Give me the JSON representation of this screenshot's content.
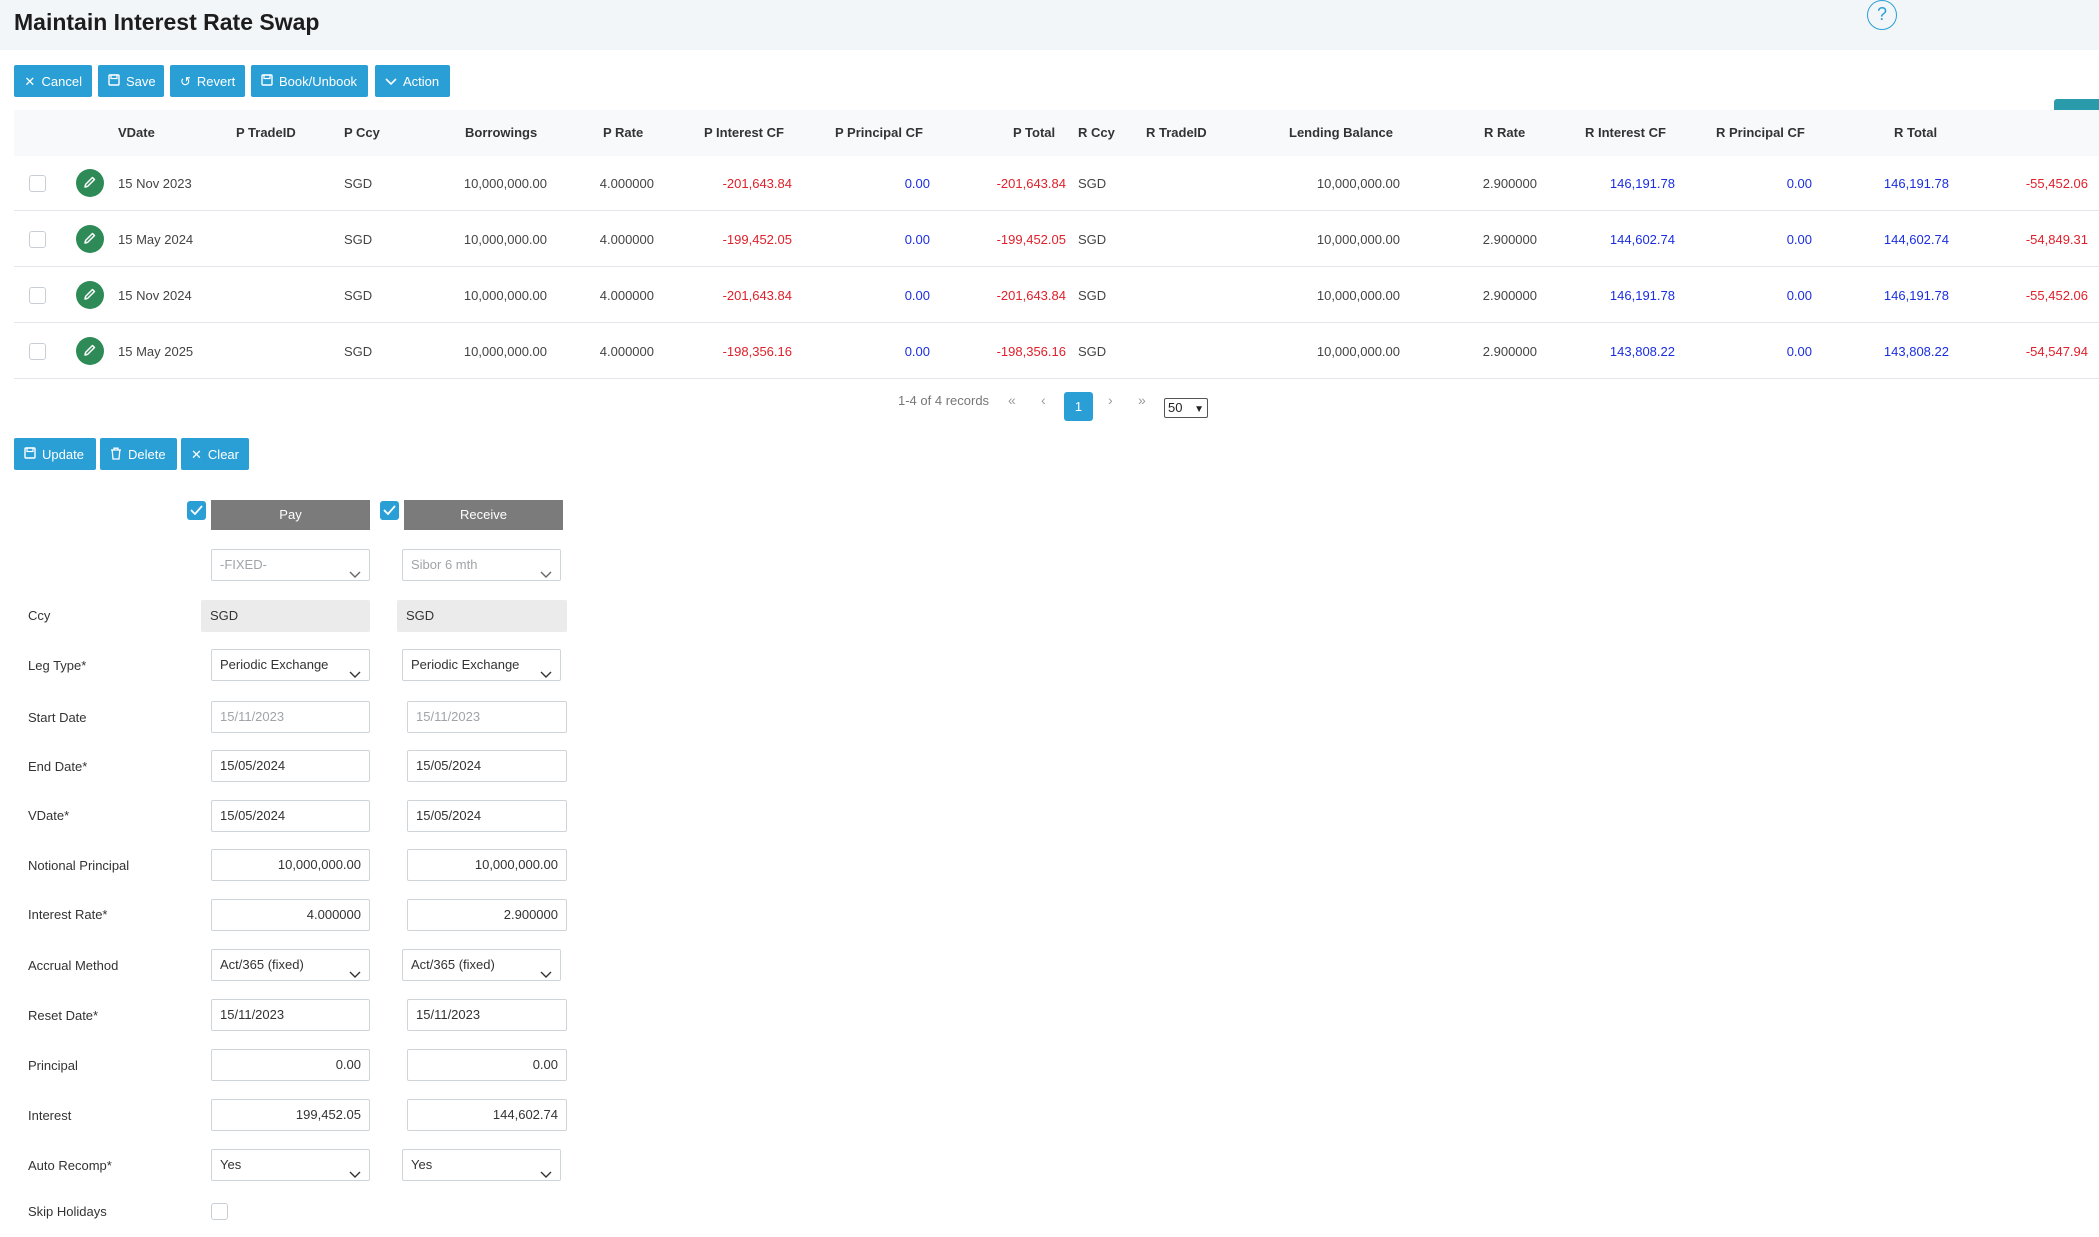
{
  "page": {
    "title": "Maintain Interest Rate Swap",
    "help": "?"
  },
  "toolbar": {
    "cancel": "Cancel",
    "save": "Save",
    "revert": "Revert",
    "book_unbook": "Book/Unbook",
    "action": "Action"
  },
  "grid": {
    "columns": {
      "vdate": "VDate",
      "p_tradeid": "P TradeID",
      "p_ccy": "P Ccy",
      "borrowings": "Borrowings",
      "p_rate": "P Rate",
      "p_interest_cf": "P Interest CF",
      "p_principal_cf": "P Principal CF",
      "p_total": "P Total",
      "r_ccy": "R Ccy",
      "r_tradeid": "R TradeID",
      "lending_balance": "Lending Balance",
      "r_rate": "R Rate",
      "r_interest_cf": "R Interest CF",
      "r_principal_cf": "R Principal CF",
      "r_total": "R Total"
    },
    "rows": [
      {
        "vdate": "15 Nov 2023",
        "p_tradeid": "",
        "p_ccy": "SGD",
        "borrowings": "10,000,000.00",
        "p_rate": "4.000000",
        "p_interest_cf": "-201,643.84",
        "p_principal_cf": "0.00",
        "p_total": "-201,643.84",
        "r_ccy": "SGD",
        "r_tradeid": "",
        "lending_balance": "10,000,000.00",
        "r_rate": "2.900000",
        "r_interest_cf": "146,191.78",
        "r_principal_cf": "0.00",
        "r_total": "146,191.78",
        "net": "-55,452.06"
      },
      {
        "vdate": "15 May 2024",
        "p_tradeid": "",
        "p_ccy": "SGD",
        "borrowings": "10,000,000.00",
        "p_rate": "4.000000",
        "p_interest_cf": "-199,452.05",
        "p_principal_cf": "0.00",
        "p_total": "-199,452.05",
        "r_ccy": "SGD",
        "r_tradeid": "",
        "lending_balance": "10,000,000.00",
        "r_rate": "2.900000",
        "r_interest_cf": "144,602.74",
        "r_principal_cf": "0.00",
        "r_total": "144,602.74",
        "net": "-54,849.31"
      },
      {
        "vdate": "15 Nov 2024",
        "p_tradeid": "",
        "p_ccy": "SGD",
        "borrowings": "10,000,000.00",
        "p_rate": "4.000000",
        "p_interest_cf": "-201,643.84",
        "p_principal_cf": "0.00",
        "p_total": "-201,643.84",
        "r_ccy": "SGD",
        "r_tradeid": "",
        "lending_balance": "10,000,000.00",
        "r_rate": "2.900000",
        "r_interest_cf": "146,191.78",
        "r_principal_cf": "0.00",
        "r_total": "146,191.78",
        "net": "-55,452.06"
      },
      {
        "vdate": "15 May 2025",
        "p_tradeid": "",
        "p_ccy": "SGD",
        "borrowings": "10,000,000.00",
        "p_rate": "4.000000",
        "p_interest_cf": "-198,356.16",
        "p_principal_cf": "0.00",
        "p_total": "-198,356.16",
        "r_ccy": "SGD",
        "r_tradeid": "",
        "lending_balance": "10,000,000.00",
        "r_rate": "2.900000",
        "r_interest_cf": "143,808.22",
        "r_principal_cf": "0.00",
        "r_total": "143,808.22",
        "net": "-54,547.94"
      }
    ]
  },
  "pagination": {
    "summary": "1-4 of 4 records",
    "first": "«",
    "prev": "‹",
    "current": "1",
    "next": "›",
    "last": "»",
    "page_size": "50"
  },
  "detail_toolbar": {
    "update": "Update",
    "delete": "Delete",
    "clear": "Clear"
  },
  "legs": {
    "pay": {
      "title": "Pay",
      "checked": true
    },
    "receive": {
      "title": "Receive",
      "checked": true
    }
  },
  "form": {
    "labels": {
      "ccy": "Ccy",
      "leg_type": "Leg Type*",
      "start_date": "Start Date",
      "end_date": "End Date*",
      "vdate": "VDate*",
      "notional_principal": "Notional Principal",
      "interest_rate": "Interest Rate*",
      "accrual_method": "Accrual Method",
      "reset_date": "Reset Date*",
      "principal": "Principal",
      "interest": "Interest",
      "auto_recomp": "Auto Recomp*",
      "skip_holidays": "Skip Holidays"
    },
    "pay": {
      "index": "-FIXED-",
      "ccy": "SGD",
      "leg_type": "Periodic Exchange",
      "start_date": "15/11/2023",
      "end_date": "15/05/2024",
      "vdate": "15/05/2024",
      "notional_principal": "10,000,000.00",
      "interest_rate": "4.000000",
      "accrual_method": "Act/365 (fixed)",
      "reset_date": "15/11/2023",
      "principal": "0.00",
      "interest": "199,452.05",
      "auto_recomp": "Yes"
    },
    "receive": {
      "index": "Sibor 6 mth",
      "ccy": "SGD",
      "leg_type": "Periodic Exchange",
      "start_date": "15/11/2023",
      "end_date": "15/05/2024",
      "vdate": "15/05/2024",
      "notional_principal": "10,000,000.00",
      "interest_rate": "2.900000",
      "accrual_method": "Act/365 (fixed)",
      "reset_date": "15/11/2023",
      "principal": "0.00",
      "interest": "144,602.74",
      "auto_recomp": "Yes"
    },
    "skip_holidays": false
  },
  "colors": {
    "accent": "#2a9fd6",
    "negative": "#e0202a",
    "positive": "#1a2ee0",
    "edit": "#2e8b57",
    "leg_header": "#7b7b7b"
  },
  "icons": {
    "cancel": "close-icon",
    "save": "save-icon",
    "revert": "undo-icon",
    "book": "save-icon",
    "action": "chevron-down-icon",
    "edit": "pencil-icon",
    "settings": "gear-icon",
    "update": "save-icon",
    "delete": "trash-icon",
    "clear": "close-icon"
  }
}
